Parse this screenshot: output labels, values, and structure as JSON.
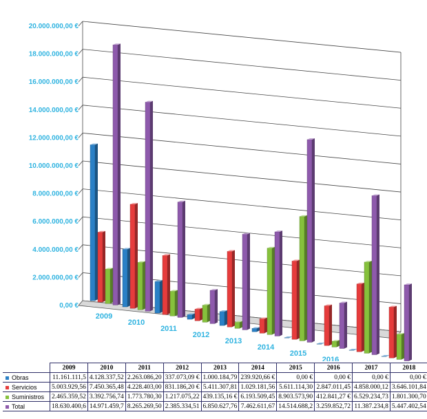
{
  "chart_data": {
    "type": "bar",
    "title": "",
    "xlabel": "",
    "ylabel": "",
    "ylim": [
      0,
      20000000
    ],
    "y_tick_labels": [
      "0,00 €",
      "2.000.000,00 €",
      "4.000.000,00 €",
      "6.000.000,00 €",
      "8.000.000,00 €",
      "10.000.000,00 €",
      "12.000.000,00 €",
      "14.000.000,00 €",
      "16.000.000,00 €",
      "18.000.000,00 €",
      "20.000.000,00 €"
    ],
    "grid": true,
    "legend": "table-below",
    "categories": [
      "2009",
      "2010",
      "2011",
      "2012",
      "2013",
      "2014",
      "2015",
      "2016",
      "2017",
      "2018"
    ],
    "series": [
      {
        "name": "Obras",
        "color": "#2a80c6",
        "values": [
          11161111.5,
          4128337.52,
          2263086.2,
          337073.09,
          1000184.79,
          239920.66,
          0,
          0,
          0,
          0
        ],
        "labels": [
          "11.161.111,5",
          "4.128.337,52",
          "2.263.086,20",
          "337.073,09 €",
          "1.000.184,79",
          "239.920,66 €",
          "0,00 €",
          "0,00 €",
          "0,00 €",
          "0,00 €"
        ]
      },
      {
        "name": "Servicios",
        "color": "#e63c3c",
        "values": [
          5003929.56,
          7450365.48,
          4228403.0,
          831186.2,
          5411307.81,
          1029181.56,
          5611114.3,
          2847011.45,
          4858000.12,
          3646101.84
        ],
        "labels": [
          "5.003.929,56",
          "7.450.365,48",
          "4.228.403,00",
          "831.186,20 €",
          "5.411.307,81",
          "1.029.181,56",
          "5.611.114,30",
          "2.847.011,45",
          "4.858.000,12",
          "3.646.101,84"
        ]
      },
      {
        "name": "Suministros",
        "color": "#86c13c",
        "values": [
          2465359.52,
          3392756.74,
          1773780.3,
          1217075.22,
          439135.16,
          6193509.45,
          8903573.9,
          412841.27,
          6529234.73,
          1801300.7
        ],
        "labels": [
          "2.465.359,52",
          "3.392.756,74",
          "1.773.780,30",
          "1.217.075,22",
          "439.135,16 €",
          "6.193.509,45",
          "8.903.573,90",
          "412.841,27 €",
          "6.529.234,73",
          "1.801.300,70"
        ]
      },
      {
        "name": "Total",
        "color": "#8e5aac",
        "values": [
          18630400.6,
          14971459.7,
          8265269.5,
          2385334.51,
          6850627.76,
          7462611.67,
          14514688.2,
          3259852.72,
          11387234.8,
          5447402.54
        ],
        "labels": [
          "18.630.400,6",
          "14.971.459,7",
          "8.265.269,50",
          "2.385.334,51",
          "6.850.627,76",
          "7.462.611,67",
          "14.514.688,2",
          "3.259.852,72",
          "11.387.234,8",
          "5.447.402,54"
        ]
      }
    ]
  }
}
